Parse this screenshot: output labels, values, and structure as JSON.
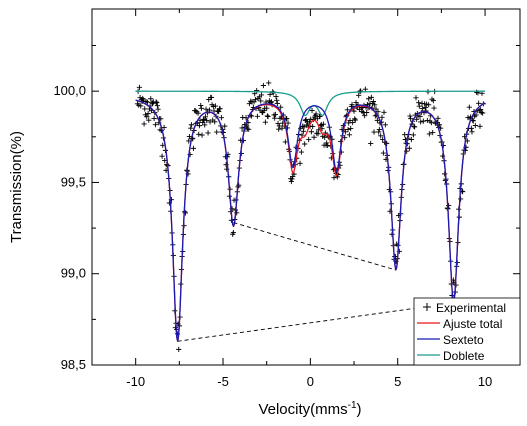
{
  "chart_data": {
    "type": "scatter",
    "xlabel": "Velocity(mms",
    "xlabel_sup": "-1",
    "xlabel_end": ")",
    "ylabel": "Transmission(%)",
    "xlim": [
      -12.5,
      12
    ],
    "ylim": [
      98.5,
      100.45
    ],
    "x_ticks": [
      -10,
      -5,
      0,
      5,
      10
    ],
    "x_tick_labels": [
      "-10",
      "-5",
      "0",
      "5",
      "10"
    ],
    "y_ticks": [
      98.5,
      99.0,
      99.5,
      100.0
    ],
    "y_tick_labels": [
      "98,5",
      "99,0",
      "99,5",
      "100,0"
    ],
    "grid": false,
    "legend_position": "bottom-right",
    "legend": [
      "Experimental",
      "Ajuste total",
      "Sexteto",
      "Doblete"
    ],
    "colors": {
      "experimental": "#000000",
      "ajuste_total": "#e8141b",
      "sexteto": "#1b1bb0",
      "doblete": "#1a9e8f",
      "guide": "#000000"
    },
    "sextet": {
      "baseline": 99.985,
      "peaks": [
        {
          "v": -7.6,
          "depth": 1.34,
          "hwhm": 0.36
        },
        {
          "v": -4.4,
          "depth": 0.7,
          "hwhm": 0.36
        },
        {
          "v": -1.0,
          "depth": 0.38,
          "hwhm": 0.33
        },
        {
          "v": 1.5,
          "depth": 0.4,
          "hwhm": 0.33
        },
        {
          "v": 4.9,
          "depth": 0.94,
          "hwhm": 0.36
        },
        {
          "v": 8.2,
          "depth": 1.12,
          "hwhm": 0.36
        }
      ]
    },
    "doublet": {
      "baseline": 100.0,
      "peaks": [
        {
          "v": -0.3,
          "depth": 0.12,
          "hwhm": 0.35
        },
        {
          "v": 0.7,
          "depth": 0.12,
          "hwhm": 0.35
        }
      ]
    },
    "guides": [
      {
        "x1": -7.6,
        "y1": 98.63,
        "x2": 8.2,
        "y2": 98.84
      },
      {
        "x1": -4.4,
        "y1": 99.28,
        "x2": 4.9,
        "y2": 99.02
      }
    ],
    "experimental_points": {
      "v_min": -9.9,
      "v_max": 9.9,
      "count": 520,
      "noise_sd": 0.055
    }
  }
}
